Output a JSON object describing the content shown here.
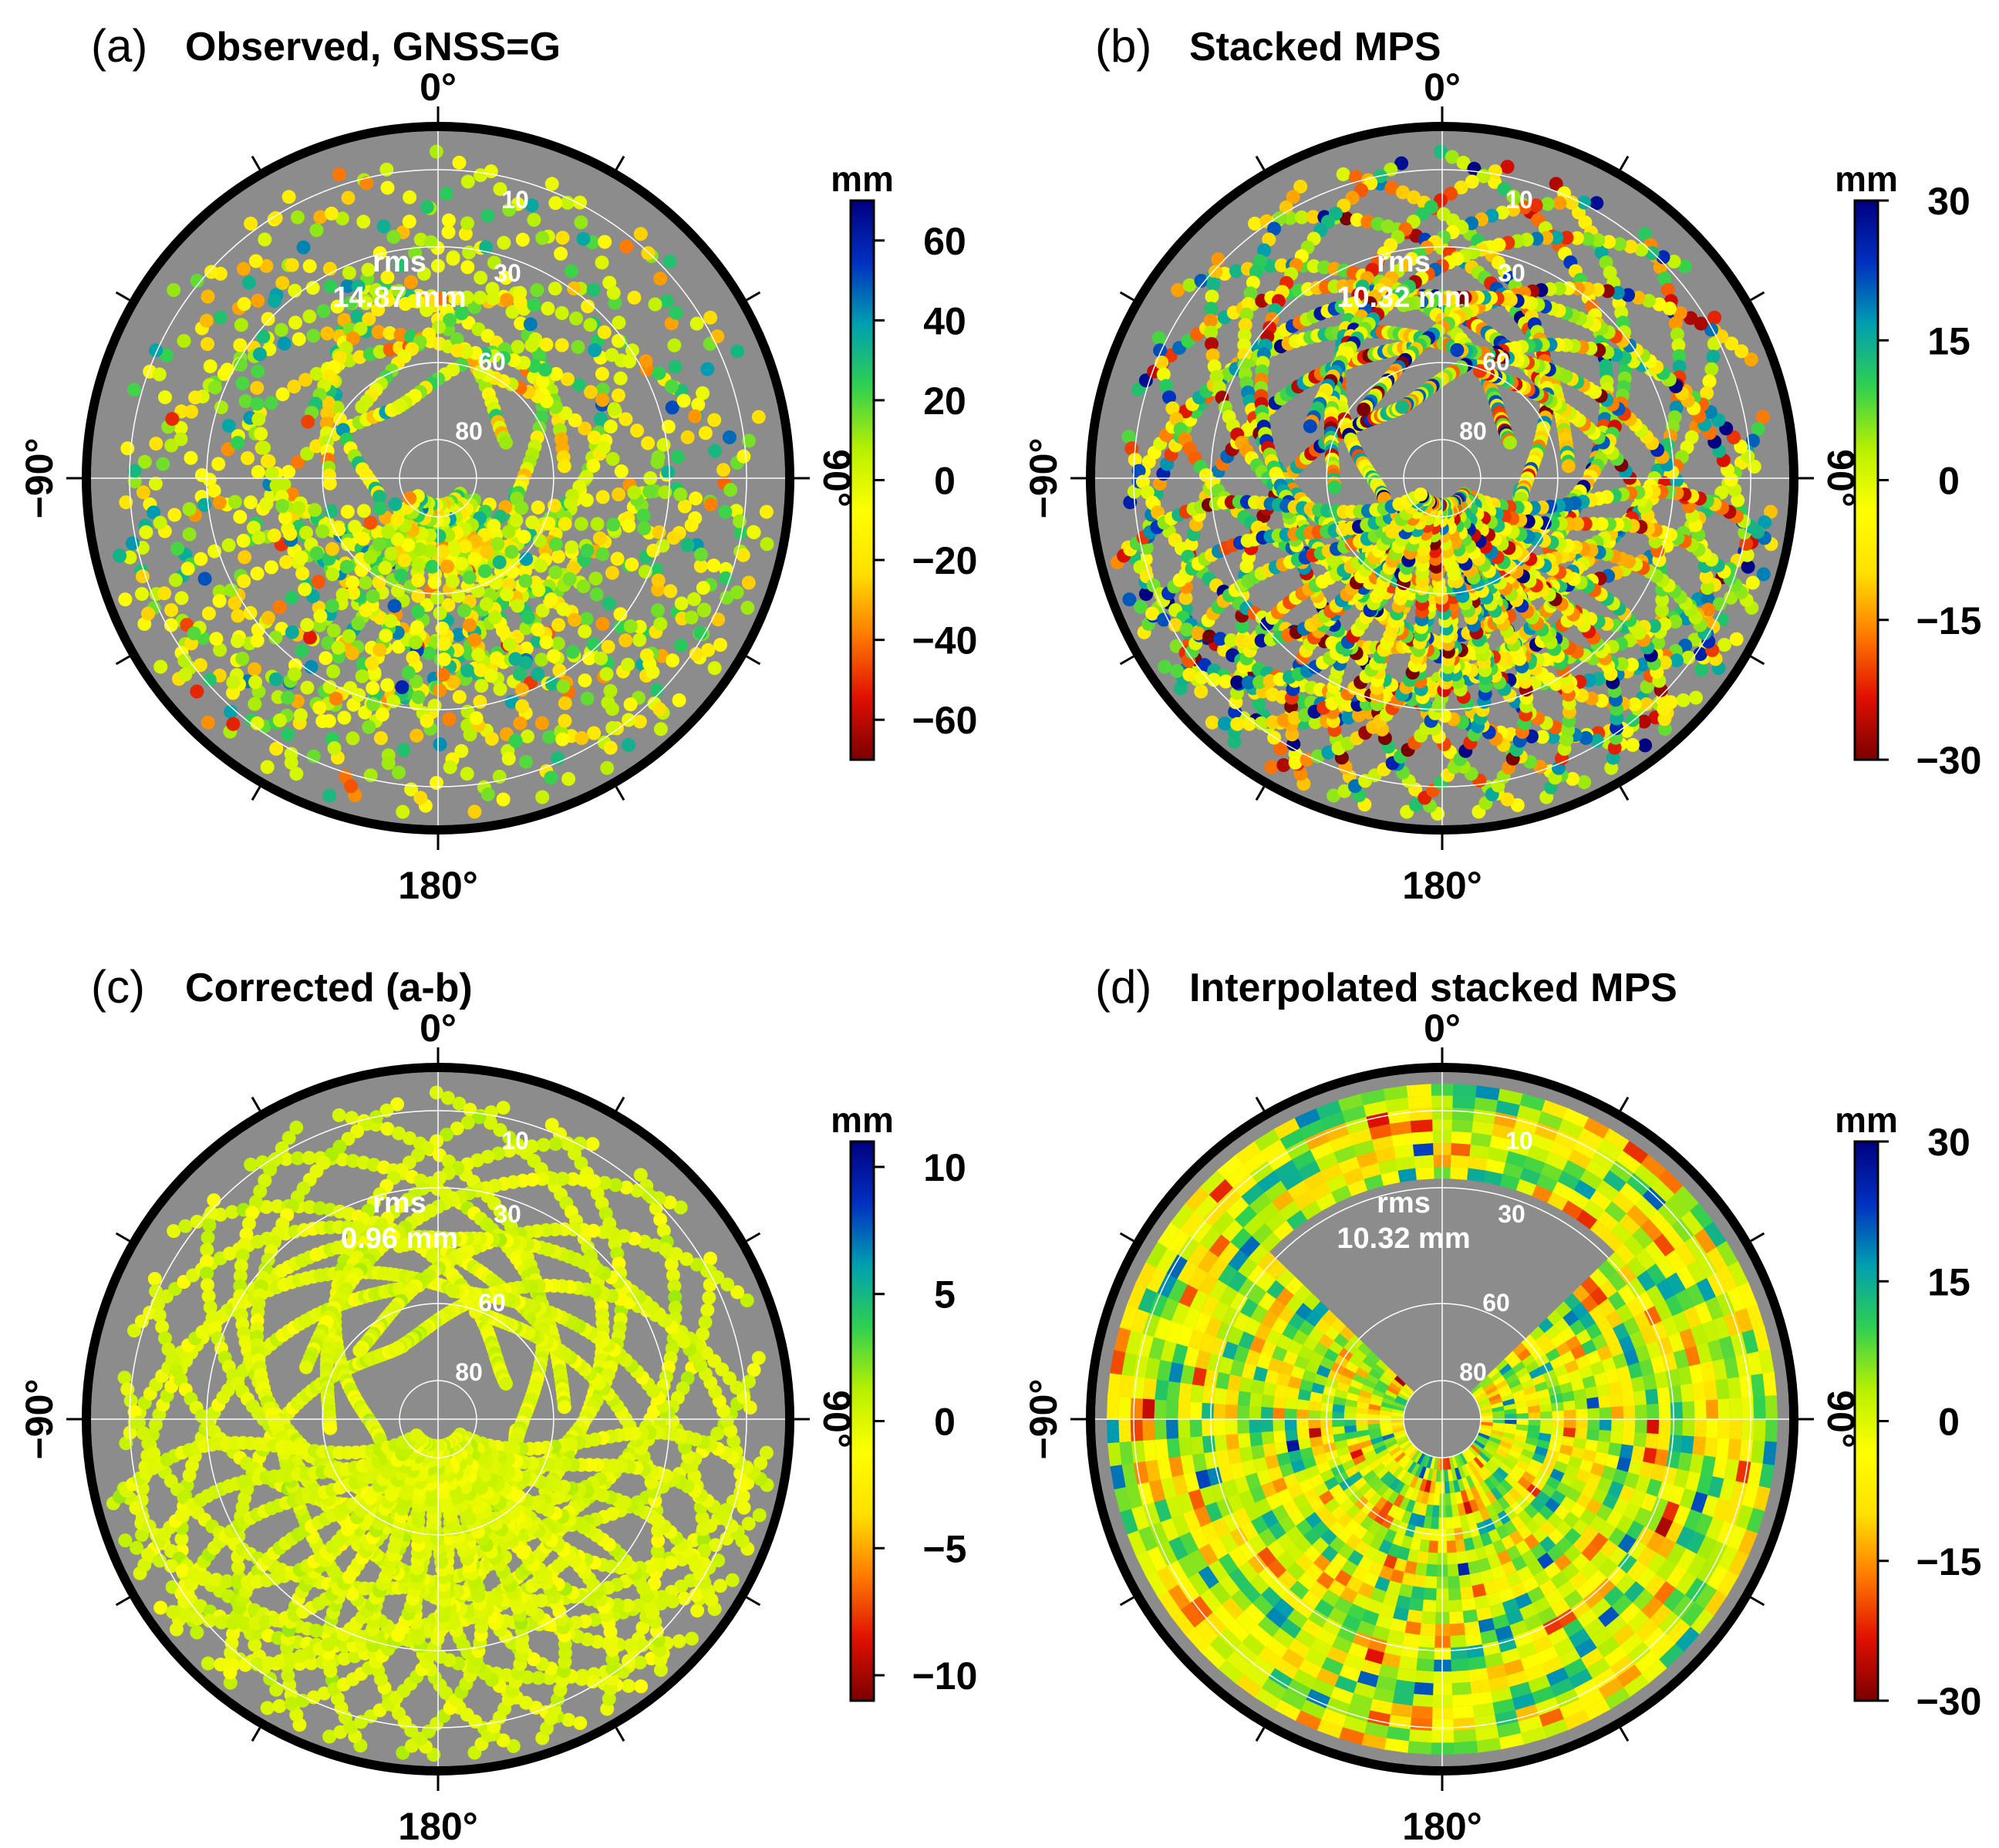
{
  "figure": {
    "colors": {
      "background": "#ffffff",
      "plot_background": "#8c8c8c",
      "frame": "#000000",
      "grid": "#ffffff",
      "colormap": [
        "#7a0000",
        "#e01000",
        "#ff7a00",
        "#ffe000",
        "#ffff00",
        "#b8f000",
        "#30d050",
        "#00a0b0",
        "#0030c0",
        "#000080"
      ]
    }
  },
  "chart_data": [
    {
      "type": "polar-scatter",
      "panel_label": "(a)",
      "title": "Observed, GNSS=G",
      "azimuth_labels": {
        "top": "0°",
        "bottom": "180°",
        "left": "−90°",
        "right": "90°"
      },
      "elevation_rings": [
        "10",
        "30",
        "60",
        "80"
      ],
      "rms_label": "rms",
      "rms_value": "14.87 mm",
      "colorbar": {
        "unit": "mm",
        "range": [
          -70,
          70
        ],
        "ticks": [
          "60",
          "40",
          "20",
          "0",
          "−20",
          "−40",
          "−60"
        ],
        "tick_values": [
          60,
          40,
          20,
          0,
          -20,
          -40,
          -60
        ]
      },
      "noise_scale": 0.25,
      "tracks": "GPS satellite tracks in northern sky hemisphere, gap near north"
    },
    {
      "type": "polar-scatter",
      "panel_label": "(b)",
      "title": "Stacked MPS",
      "azimuth_labels": {
        "top": "0°",
        "bottom": "180°",
        "left": "−90°",
        "right": "90°"
      },
      "elevation_rings": [
        "10",
        "30",
        "60",
        "80"
      ],
      "rms_label": "rms",
      "rms_value": "10.32 mm",
      "colorbar": {
        "unit": "mm",
        "range": [
          -30,
          30
        ],
        "ticks": [
          "30",
          "15",
          "0",
          "−15",
          "−30"
        ],
        "tick_values": [
          30,
          15,
          0,
          -15,
          -30
        ]
      },
      "noise_scale": 0.4,
      "tracks": "same tracks as (a)"
    },
    {
      "type": "polar-scatter",
      "panel_label": "(c)",
      "title": "Corrected (a-b)",
      "azimuth_labels": {
        "top": "0°",
        "bottom": "180°",
        "left": "−90°",
        "right": "90°"
      },
      "elevation_rings": [
        "10",
        "30",
        "60",
        "80"
      ],
      "rms_label": "rms",
      "rms_value": "0.96 mm",
      "colorbar": {
        "unit": "mm",
        "range": [
          -11,
          11
        ],
        "ticks": [
          "10",
          "5",
          "0",
          "−5",
          "−10"
        ],
        "tick_values": [
          10,
          5,
          0,
          -5,
          -10
        ]
      },
      "noise_scale": 0.05,
      "tracks": "same tracks as (a)"
    },
    {
      "type": "heatmap",
      "panel_label": "(d)",
      "title": "Interpolated stacked MPS",
      "azimuth_labels": {
        "top": "0°",
        "bottom": "180°",
        "left": "−90°",
        "right": "90°"
      },
      "elevation_rings": [
        "10",
        "30",
        "60",
        "80"
      ],
      "rms_label": "rms",
      "rms_value": "10.32 mm",
      "colorbar": {
        "unit": "mm",
        "range": [
          -30,
          30
        ],
        "ticks": [
          "30",
          "15",
          "0",
          "−15",
          "−30"
        ],
        "tick_values": [
          30,
          15,
          0,
          -15,
          -30
        ]
      },
      "noise_scale": 0.45,
      "tracks": "interpolated grid over sky, empty north sector"
    }
  ]
}
